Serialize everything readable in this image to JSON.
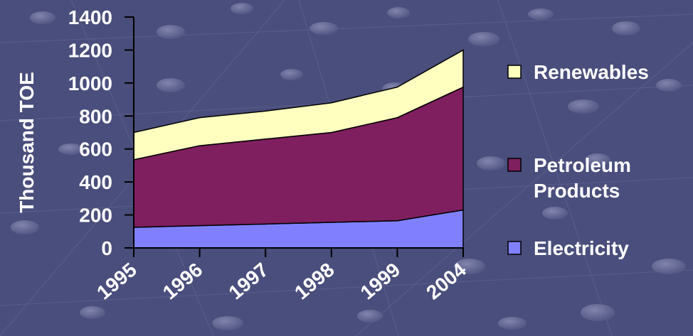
{
  "chart_data": {
    "type": "area",
    "stacked": true,
    "categories": [
      "1995",
      "1996",
      "1997",
      "1998",
      "1999",
      "2004"
    ],
    "series": [
      {
        "name": "Electricity",
        "values": [
          125,
          135,
          145,
          155,
          165,
          230
        ],
        "color": "#8080FF"
      },
      {
        "name": "Petroleum Products",
        "values": [
          410,
          485,
          515,
          545,
          625,
          745
        ],
        "color": "#7F1F5F"
      },
      {
        "name": "Renewables",
        "values": [
          165,
          170,
          170,
          180,
          185,
          225
        ],
        "color": "#FFFFC0"
      }
    ],
    "legend": [
      {
        "lines": [
          "Renewables"
        ],
        "series": 2
      },
      {
        "lines": [
          "Petroleum",
          "Products"
        ],
        "series": 1
      },
      {
        "lines": [
          "Electricity"
        ],
        "series": 0
      }
    ],
    "ylabel": "Thousand TOE",
    "xlabel": "",
    "ylim": [
      0,
      1400
    ],
    "yticks": [
      0,
      200,
      400,
      600,
      800,
      1000,
      1200,
      1400
    ],
    "grid": false,
    "legend_position": "right"
  },
  "colors": {
    "background": "#4A4E7C",
    "text": "#FFFFFF",
    "axis": "#000000",
    "outline": "#000000"
  }
}
